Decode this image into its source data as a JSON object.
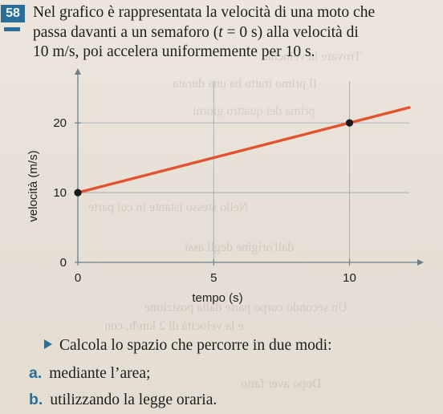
{
  "problem": {
    "number": "58",
    "text_line1": "Nel grafico è rappresentata la velocità di una moto che",
    "text_line2_pre": "passa davanti a un semaforo (",
    "text_line2_var": "t",
    "text_line2_post": " = 0 s) alla velocità di",
    "text_line3": "10 m/s, poi accelera uniformemente per 10 s."
  },
  "chart_data": {
    "type": "line",
    "xlabel": "tempo (s)",
    "ylabel": "velocità (m/s)",
    "xticks": [
      "0",
      "5",
      "10"
    ],
    "yticks": [
      "0",
      "10",
      "20"
    ],
    "xlim": [
      0,
      12.2
    ],
    "ylim": [
      0,
      26
    ],
    "grid": true,
    "series": [
      {
        "x": [
          0,
          10
        ],
        "y": [
          10,
          20
        ],
        "extends_to_x": 12.2
      }
    ],
    "markers": [
      {
        "x": 0,
        "y": 10
      },
      {
        "x": 10,
        "y": 20
      }
    ],
    "line_color": "#e2542f"
  },
  "task": {
    "text": "Calcola lo spazio che percorre in due modi:",
    "items": [
      {
        "letter": "a.",
        "text": "mediante l’area;"
      },
      {
        "letter": "b.",
        "text": "utilizzando la legge oraria."
      }
    ]
  }
}
